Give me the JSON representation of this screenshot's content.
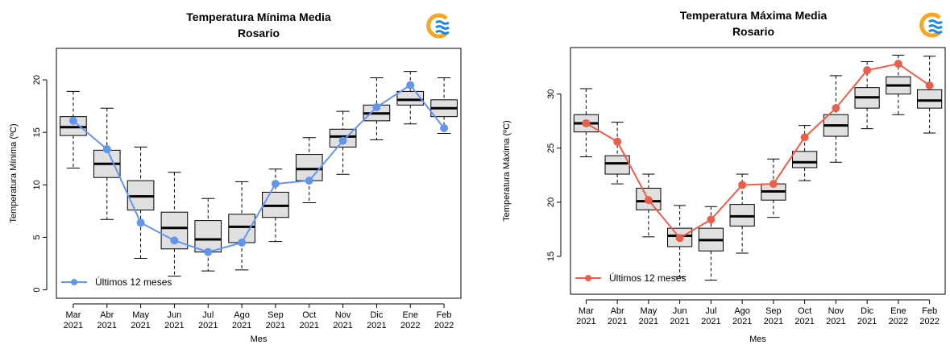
{
  "colors": {
    "left_series": "#6495ed",
    "right_series": "#e8604c",
    "box_fill": "#e0e0e0"
  },
  "logo": {
    "icon": "weather-logo-icon"
  },
  "chart_data": [
    {
      "type": "box",
      "title": "Temperatura Mínima Media",
      "subtitle": "Rosario",
      "xlabel": "Mes",
      "ylabel": "Temperatura Mínima (ºC)",
      "ylim": [
        -0.8,
        23
      ],
      "yticks": [
        0,
        5,
        10,
        15,
        20
      ],
      "categories": [
        {
          "month": "Mar",
          "year": "2021"
        },
        {
          "month": "Abr",
          "year": "2021"
        },
        {
          "month": "May",
          "year": "2021"
        },
        {
          "month": "Jun",
          "year": "2021"
        },
        {
          "month": "Jul",
          "year": "2021"
        },
        {
          "month": "Ago",
          "year": "2021"
        },
        {
          "month": "Sep",
          "year": "2021"
        },
        {
          "month": "Oct",
          "year": "2021"
        },
        {
          "month": "Nov",
          "year": "2021"
        },
        {
          "month": "Dic",
          "year": "2021"
        },
        {
          "month": "Ene",
          "year": "2022"
        },
        {
          "month": "Feb",
          "year": "2022"
        }
      ],
      "boxes": [
        {
          "min": 11.6,
          "q1": 14.7,
          "median": 15.5,
          "q3": 16.5,
          "max": 18.9
        },
        {
          "min": 6.7,
          "q1": 10.7,
          "median": 12.0,
          "q3": 13.3,
          "max": 17.3
        },
        {
          "min": 3.0,
          "q1": 7.6,
          "median": 8.9,
          "q3": 10.4,
          "max": 13.6
        },
        {
          "min": 1.3,
          "q1": 3.9,
          "median": 5.9,
          "q3": 7.4,
          "max": 11.2
        },
        {
          "min": 1.8,
          "q1": 3.6,
          "median": 4.8,
          "q3": 6.6,
          "max": 8.7
        },
        {
          "min": 1.9,
          "q1": 4.5,
          "median": 6.0,
          "q3": 7.2,
          "max": 10.3
        },
        {
          "min": 4.6,
          "q1": 6.9,
          "median": 8.0,
          "q3": 9.3,
          "max": 11.5
        },
        {
          "min": 8.3,
          "q1": 10.4,
          "median": 11.5,
          "q3": 12.9,
          "max": 14.5
        },
        {
          "min": 11.0,
          "q1": 13.6,
          "median": 14.6,
          "q3": 15.3,
          "max": 17.0
        },
        {
          "min": 14.3,
          "q1": 16.1,
          "median": 16.8,
          "q3": 17.6,
          "max": 20.2
        },
        {
          "min": 15.8,
          "q1": 17.6,
          "median": 18.1,
          "q3": 18.9,
          "max": 20.8
        },
        {
          "min": 14.9,
          "q1": 16.5,
          "median": 17.3,
          "q3": 18.1,
          "max": 20.2
        }
      ],
      "series": [
        {
          "name": "Últimos 12 meses",
          "values": [
            16.1,
            13.4,
            6.4,
            4.7,
            3.6,
            4.5,
            10.1,
            10.4,
            14.2,
            17.4,
            19.5,
            15.4
          ]
        }
      ],
      "legend_position": "bottom-left"
    },
    {
      "type": "box",
      "title": "Temperatura Máxima Media",
      "subtitle": "Rosario",
      "xlabel": "Mes",
      "ylabel": "Temperatura Máxima (ºC)",
      "ylim": [
        11.5,
        34.3
      ],
      "yticks": [
        15,
        20,
        25,
        30
      ],
      "categories": [
        {
          "month": "Mar",
          "year": "2021"
        },
        {
          "month": "Abr",
          "year": "2021"
        },
        {
          "month": "May",
          "year": "2021"
        },
        {
          "month": "Jun",
          "year": "2021"
        },
        {
          "month": "Jul",
          "year": "2021"
        },
        {
          "month": "Ago",
          "year": "2021"
        },
        {
          "month": "Sep",
          "year": "2021"
        },
        {
          "month": "Oct",
          "year": "2021"
        },
        {
          "month": "Nov",
          "year": "2021"
        },
        {
          "month": "Dic",
          "year": "2021"
        },
        {
          "month": "Ene",
          "year": "2022"
        },
        {
          "month": "Feb",
          "year": "2022"
        }
      ],
      "boxes": [
        {
          "min": 24.2,
          "q1": 26.5,
          "median": 27.3,
          "q3": 28.1,
          "max": 30.5
        },
        {
          "min": 21.7,
          "q1": 22.6,
          "median": 23.6,
          "q3": 24.3,
          "max": 27.4
        },
        {
          "min": 16.8,
          "q1": 19.3,
          "median": 20.1,
          "q3": 21.3,
          "max": 22.6
        },
        {
          "min": 13.1,
          "q1": 15.9,
          "median": 16.9,
          "q3": 17.6,
          "max": 19.7
        },
        {
          "min": 12.8,
          "q1": 15.5,
          "median": 16.5,
          "q3": 17.6,
          "max": 19.6
        },
        {
          "min": 15.3,
          "q1": 17.8,
          "median": 18.7,
          "q3": 19.8,
          "max": 22.6
        },
        {
          "min": 18.6,
          "q1": 20.2,
          "median": 21.0,
          "q3": 21.7,
          "max": 24.0
        },
        {
          "min": 22.0,
          "q1": 23.2,
          "median": 23.7,
          "q3": 24.7,
          "max": 27.1
        },
        {
          "min": 23.7,
          "q1": 26.1,
          "median": 27.1,
          "q3": 28.1,
          "max": 31.7
        },
        {
          "min": 26.8,
          "q1": 28.7,
          "median": 29.7,
          "q3": 30.6,
          "max": 33.0
        },
        {
          "min": 28.1,
          "q1": 30.0,
          "median": 30.8,
          "q3": 31.6,
          "max": 33.6
        },
        {
          "min": 26.4,
          "q1": 28.7,
          "median": 29.4,
          "q3": 30.4,
          "max": 33.5
        }
      ],
      "series": [
        {
          "name": "Últimos 12 meses",
          "values": [
            27.3,
            25.6,
            20.2,
            16.7,
            18.4,
            21.6,
            21.7,
            26.0,
            28.7,
            32.2,
            32.8,
            30.8
          ]
        }
      ],
      "legend_position": "bottom-left"
    }
  ]
}
